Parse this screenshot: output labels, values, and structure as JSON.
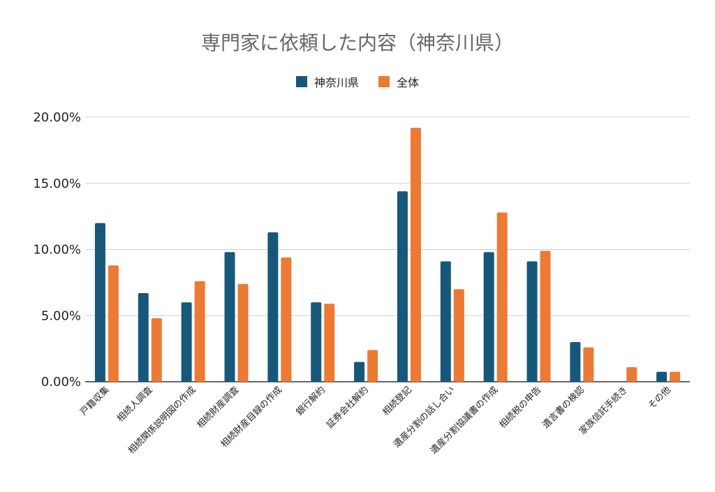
{
  "chart_data": {
    "type": "bar",
    "title": "専門家に依頼した内容（神奈川県）",
    "categories": [
      "戸籍収集",
      "相続人調査",
      "相続関係説明図の作成",
      "相続財産調査",
      "相続財産目録の作成",
      "銀行解約",
      "証券会社解約",
      "相続登記",
      "遺産分割の話し合い",
      "遺産分割協議書の作成",
      "相続税の申告",
      "遺言書の検認",
      "家族信託手続き",
      "その他"
    ],
    "series": [
      {
        "name": "神奈川県",
        "color": "#16587a",
        "values": [
          12.0,
          6.7,
          6.0,
          9.8,
          11.3,
          6.0,
          1.5,
          14.4,
          9.1,
          9.8,
          9.1,
          3.0,
          0.0,
          0.75
        ]
      },
      {
        "name": "全体",
        "color": "#ec7a35",
        "values": [
          8.8,
          4.8,
          7.6,
          7.4,
          9.4,
          5.9,
          2.4,
          19.2,
          7.0,
          12.8,
          9.9,
          2.6,
          1.1,
          0.75
        ]
      }
    ],
    "ylim": [
      0,
      20
    ],
    "yticks": [
      "0.00%",
      "5.00%",
      "10.00%",
      "15.00%",
      "20.00%"
    ],
    "grid": true,
    "legend_position": "top-center"
  }
}
